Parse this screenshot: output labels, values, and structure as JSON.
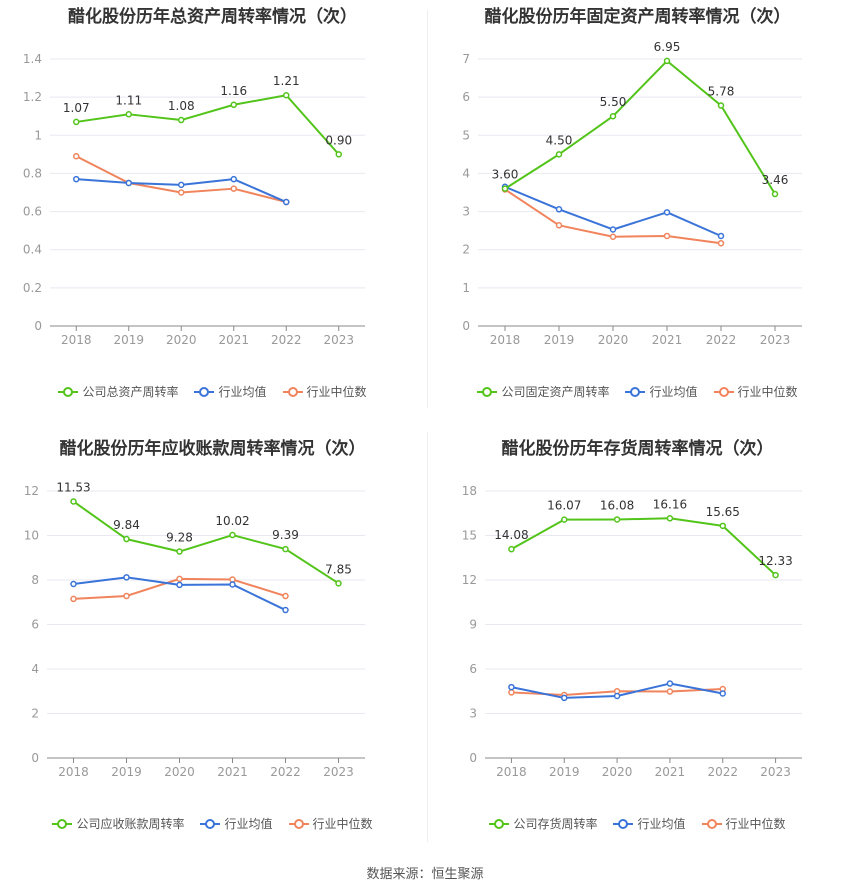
{
  "colors": {
    "company": "#52c41a",
    "avg": "#3a74d9",
    "median": "#f0845c",
    "grid": "#e8e8f0",
    "axis": "#999999"
  },
  "source": "数据来源：恒生聚源",
  "legend_labels": {
    "avg": "行业均值",
    "median": "行业中位数"
  },
  "chart_data": [
    {
      "type": "line",
      "title": "醋化股份历年总资产周转率情况（次）",
      "categories": [
        "2018",
        "2019",
        "2020",
        "2021",
        "2022",
        "2023"
      ],
      "ylim": [
        0,
        1.4
      ],
      "yticks": [
        "0",
        "0.2",
        "0.4",
        "0.6",
        "0.8",
        "1",
        "1.2",
        "1.4"
      ],
      "series": [
        {
          "name": "公司总资产周转率",
          "key": "company",
          "values": [
            1.07,
            1.11,
            1.08,
            1.16,
            1.21,
            0.9
          ],
          "labels": [
            "1.07",
            "1.11",
            "1.08",
            "1.16",
            "1.21",
            "0.90"
          ]
        },
        {
          "name": "行业均值",
          "key": "avg",
          "values": [
            0.77,
            0.75,
            0.74,
            0.77,
            0.65,
            null
          ]
        },
        {
          "name": "行业中位数",
          "key": "median",
          "values": [
            0.89,
            0.75,
            0.7,
            0.72,
            0.65,
            null
          ]
        }
      ]
    },
    {
      "type": "line",
      "title": "醋化股份历年固定资产周转率情况（次）",
      "categories": [
        "2018",
        "2019",
        "2020",
        "2021",
        "2022",
        "2023"
      ],
      "ylim": [
        0,
        7
      ],
      "yticks": [
        "0",
        "1",
        "2",
        "3",
        "4",
        "5",
        "6",
        "7"
      ],
      "series": [
        {
          "name": "公司固定资产周转率",
          "key": "company",
          "values": [
            3.6,
            4.5,
            5.5,
            6.95,
            5.78,
            3.46
          ],
          "labels": [
            "3.60",
            "4.50",
            "5.50",
            "6.95",
            "5.78",
            "3.46"
          ]
        },
        {
          "name": "行业均值",
          "key": "avg",
          "values": [
            3.65,
            3.06,
            2.53,
            2.98,
            2.36,
            null
          ]
        },
        {
          "name": "行业中位数",
          "key": "median",
          "values": [
            3.58,
            2.64,
            2.34,
            2.36,
            2.17,
            null
          ]
        }
      ]
    },
    {
      "type": "line",
      "title": "醋化股份历年应收账款周转率情况（次）",
      "categories": [
        "2018",
        "2019",
        "2020",
        "2021",
        "2022",
        "2023"
      ],
      "ylim": [
        0,
        12
      ],
      "yticks": [
        "0",
        "2",
        "4",
        "6",
        "8",
        "10",
        "12"
      ],
      "series": [
        {
          "name": "公司应收账款周转率",
          "key": "company",
          "values": [
            11.53,
            9.84,
            9.28,
            10.02,
            9.39,
            7.85
          ],
          "labels": [
            "11.53",
            "9.84",
            "9.28",
            "10.02",
            "9.39",
            "7.85"
          ]
        },
        {
          "name": "行业均值",
          "key": "avg",
          "values": [
            7.82,
            8.12,
            7.78,
            7.8,
            6.65,
            null
          ]
        },
        {
          "name": "行业中位数",
          "key": "median",
          "values": [
            7.15,
            7.28,
            8.05,
            8.02,
            7.28,
            null
          ]
        }
      ]
    },
    {
      "type": "line",
      "title": "醋化股份历年存货周转率情况（次）",
      "categories": [
        "2018",
        "2019",
        "2020",
        "2021",
        "2022",
        "2023"
      ],
      "ylim": [
        0,
        18
      ],
      "yticks": [
        "0",
        "3",
        "6",
        "9",
        "12",
        "15",
        "18"
      ],
      "series": [
        {
          "name": "公司存货周转率",
          "key": "company",
          "values": [
            14.08,
            16.07,
            16.08,
            16.16,
            15.65,
            12.33
          ],
          "labels": [
            "14.08",
            "16.07",
            "16.08",
            "16.16",
            "15.65",
            "12.33"
          ]
        },
        {
          "name": "行业均值",
          "key": "avg",
          "values": [
            4.78,
            4.05,
            4.18,
            5.02,
            4.35,
            null
          ]
        },
        {
          "name": "行业中位数",
          "key": "median",
          "values": [
            4.42,
            4.25,
            4.5,
            4.48,
            4.65,
            null
          ]
        }
      ]
    }
  ]
}
